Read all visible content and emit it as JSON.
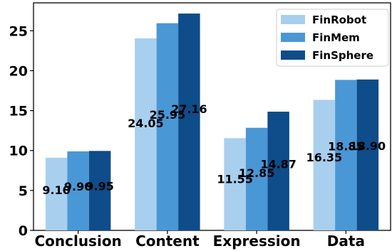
{
  "chart_data": {
    "type": "bar",
    "categories": [
      "Conclusion",
      "Content",
      "Expression",
      "Data"
    ],
    "series": [
      {
        "name": "FinRobot",
        "color": "#a9cfee",
        "values": [
          9.1,
          24.05,
          11.55,
          16.35
        ]
      },
      {
        "name": "FinMem",
        "color": "#4a97d6",
        "values": [
          9.9,
          25.95,
          12.85,
          18.85
        ]
      },
      {
        "name": "FinSphere",
        "color": "#0e4c8a",
        "values": [
          9.95,
          27.16,
          14.87,
          18.9
        ]
      }
    ],
    "labels": [
      [
        "9.10",
        "24.05",
        "11.55",
        "16.35"
      ],
      [
        "9.90",
        "25.95",
        "12.85",
        "18.85"
      ],
      [
        "9.95",
        "27.16",
        "14.87",
        "18.90"
      ]
    ],
    "ylim": [
      0,
      28.5
    ],
    "yticks": [
      0,
      5,
      10,
      15,
      20,
      25
    ],
    "legend_position": "top-right",
    "title": "",
    "xlabel": "",
    "ylabel": ""
  }
}
